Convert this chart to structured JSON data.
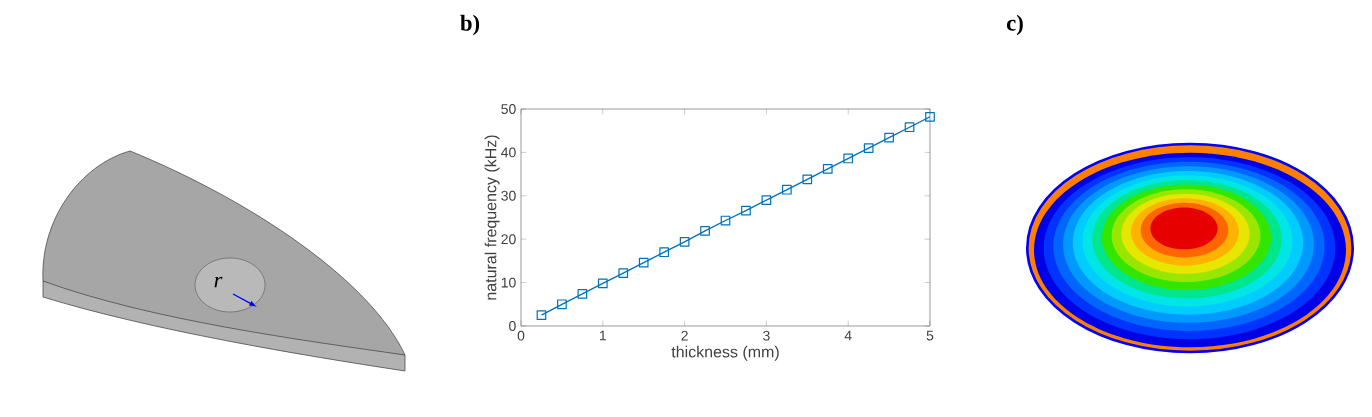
{
  "chart_data": {
    "type": "line",
    "xlabel": "thickness (mm)",
    "ylabel": "natural frequency (kHz)",
    "annotations": [
      "b)",
      "c)",
      "r"
    ],
    "x": [
      0.25,
      0.5,
      0.75,
      1,
      1.25,
      1.5,
      1.75,
      2,
      2.25,
      2.5,
      2.75,
      3,
      3.25,
      3.5,
      3.75,
      4,
      4.25,
      4.5,
      4.75,
      5
    ],
    "series": [
      {
        "color": "#0072bd",
        "values": [
          2.5,
          5.0,
          7.4,
          9.8,
          12.2,
          14.6,
          17.0,
          19.4,
          21.9,
          24.3,
          26.6,
          29.0,
          31.4,
          33.8,
          36.2,
          38.6,
          41.0,
          43.4,
          45.8,
          48.2
        ]
      }
    ],
    "xlim": [
      0,
      5
    ],
    "ylim": [
      0,
      50
    ],
    "xticks": [
      0,
      1,
      2,
      3,
      4,
      5
    ],
    "yticks": [
      0,
      10,
      20,
      30,
      40,
      50
    ],
    "marker": "square",
    "line_style": "solid"
  }
}
